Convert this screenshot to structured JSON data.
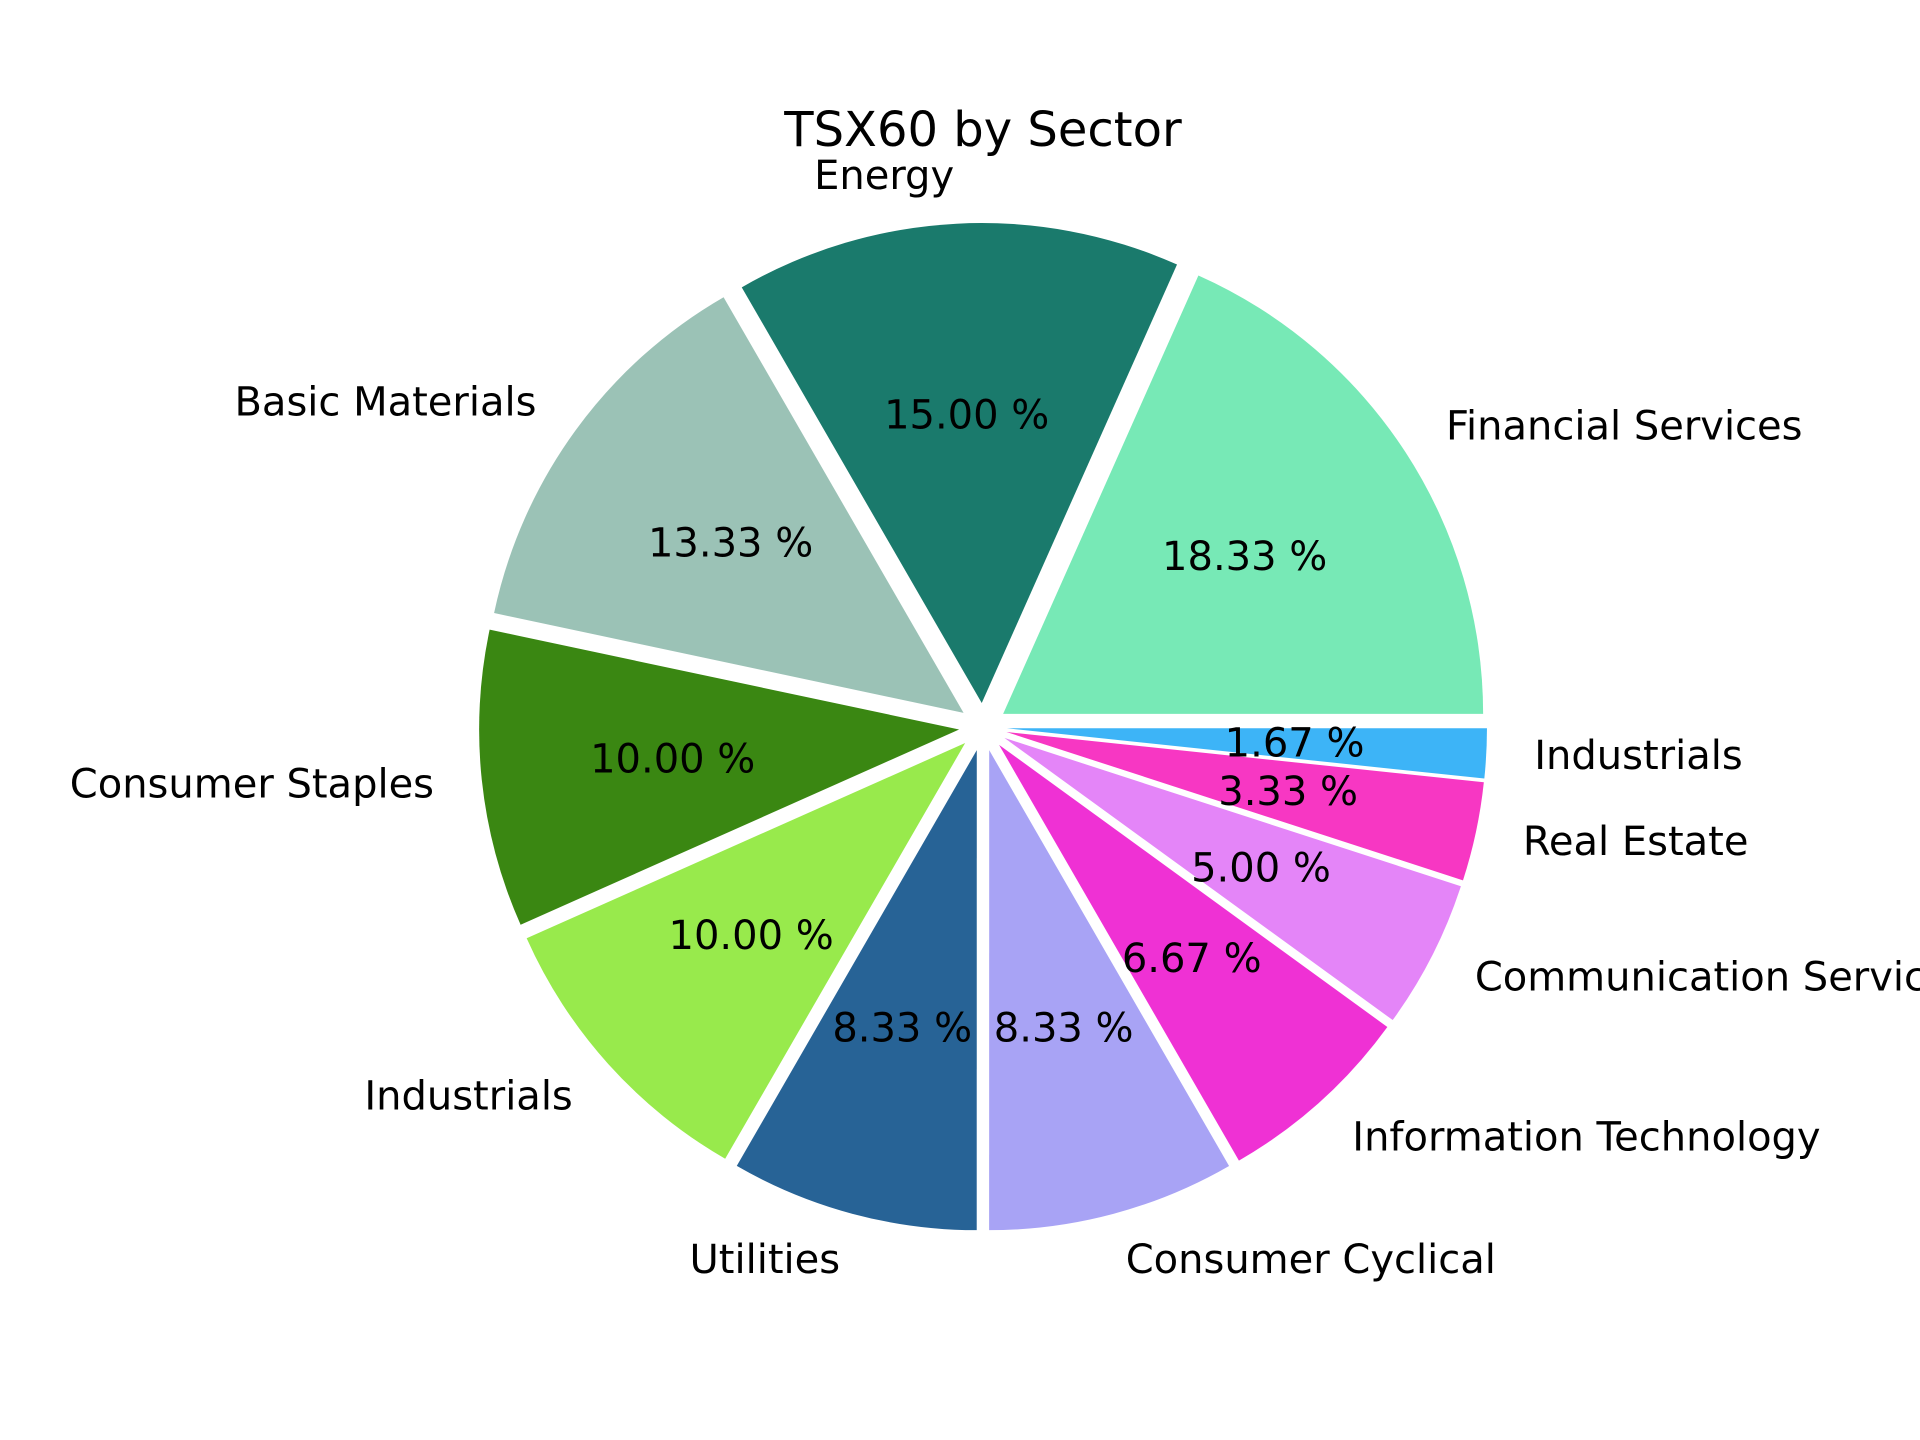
{
  "chart_data": {
    "type": "pie",
    "title": "TSX60 by Sector",
    "start_angle_deg": 0,
    "direction": "counterclockwise",
    "pct_format": "{v} %",
    "slices": [
      {
        "label": "Financial Services",
        "value": 18.33,
        "pct_label": "18.33 %",
        "color": "#77E9B6"
      },
      {
        "label": "Energy",
        "value": 15.0,
        "pct_label": "15.00 %",
        "color": "#1A7A6C"
      },
      {
        "label": "Basic Materials",
        "value": 13.33,
        "pct_label": "13.33 %",
        "color": "#9BC2B6"
      },
      {
        "label": "Consumer Staples",
        "value": 10.0,
        "pct_label": "10.00 %",
        "color": "#3A8712"
      },
      {
        "label": "Industrials",
        "value": 10.0,
        "pct_label": "10.00 %",
        "color": "#98EA4C"
      },
      {
        "label": "Utilities",
        "value": 8.33,
        "pct_label": "8.33 %",
        "color": "#276396"
      },
      {
        "label": "Consumer Cyclical",
        "value": 8.33,
        "pct_label": "8.33 %",
        "color": "#A8A3F5"
      },
      {
        "label": "Information Technology",
        "value": 6.67,
        "pct_label": "6.67 %",
        "color": "#EF31D4"
      },
      {
        "label": "Communication Services",
        "value": 5.0,
        "pct_label": "5.00 %",
        "color": "#E485F8"
      },
      {
        "label": "Real Estate",
        "value": 3.33,
        "pct_label": "3.33 %",
        "color": "#F737C3"
      },
      {
        "label": "Industrials",
        "value": 1.67,
        "pct_label": "1.67 %",
        "color": "#3DB4F7"
      }
    ]
  }
}
